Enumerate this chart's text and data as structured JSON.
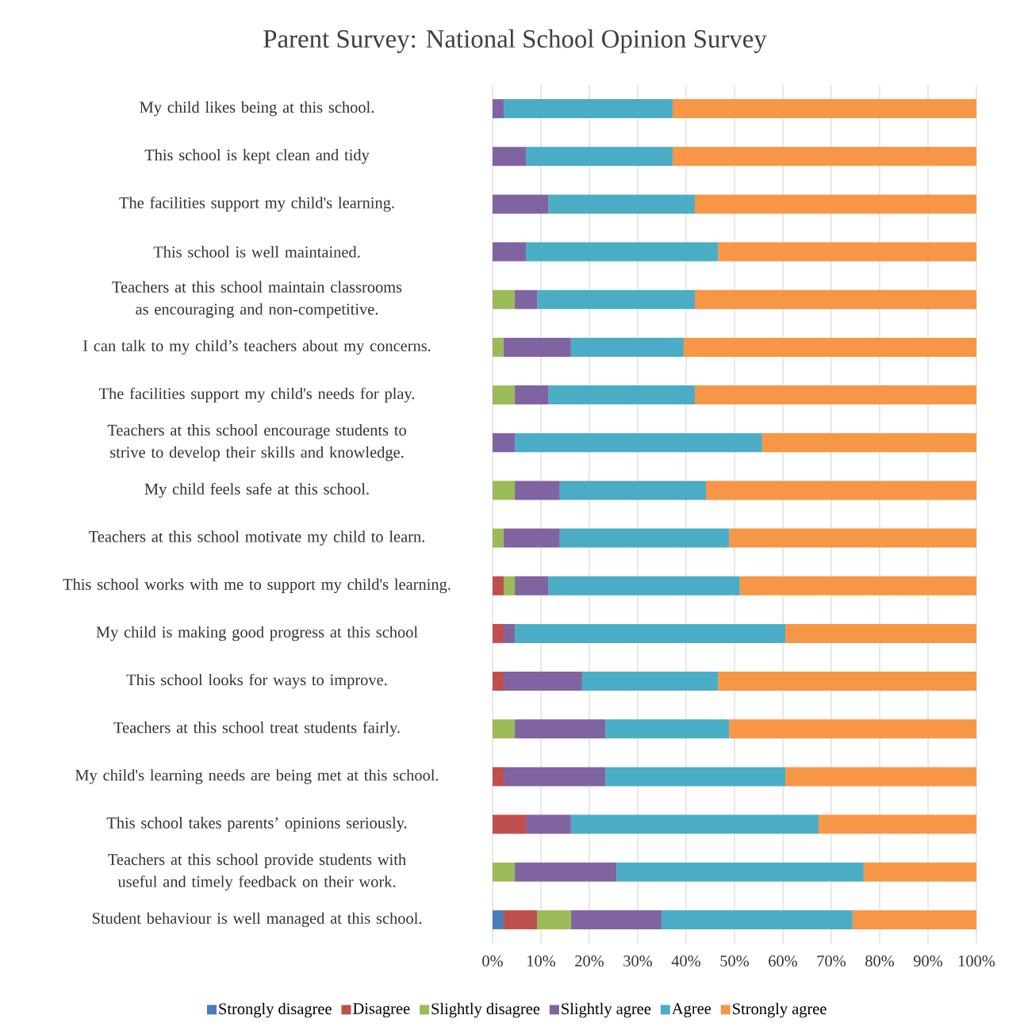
{
  "chart_data": {
    "type": "bar",
    "orientation": "horizontal",
    "stacked": true,
    "title": "Parent Survey: National School Opinion Survey",
    "categories": [
      "My child likes being at this school.",
      "This school is kept clean and tidy",
      "The facilities support my child's learning.",
      "This school is well maintained.",
      "Teachers at this school maintain classrooms as encouraging and non-competitive.",
      "I can talk to my child’s teachers about my concerns.",
      "The facilities support my child's needs for play.",
      "Teachers at this school encourage students to strive to develop their skills and knowledge.",
      "My child feels safe at this school.",
      "Teachers at this school motivate my child to learn.",
      "This school works with me to support my child's learning.",
      "My child is making good progress at this school",
      "This school looks for ways to improve.",
      "Teachers at this school treat students fairly.",
      "My child's learning needs are being met at this school.",
      "This school takes parents’ opinions seriously.",
      "Teachers at this school provide students with useful and timely feedback on their work.",
      "Student behaviour is well managed at this school."
    ],
    "series": [
      {
        "name": "Strongly disagree",
        "color": "#4a7ebb",
        "values": [
          0,
          0,
          0,
          0,
          0,
          0,
          0,
          0,
          0,
          0,
          0,
          0,
          0,
          0,
          0,
          0,
          0,
          2.3
        ]
      },
      {
        "name": "Disagree",
        "color": "#c0504d",
        "values": [
          0,
          0,
          0,
          0,
          0,
          0,
          0,
          0,
          0,
          0,
          2.3,
          2.3,
          2.3,
          0,
          2.3,
          6.9,
          0,
          6.9
        ]
      },
      {
        "name": "Slightly disagree",
        "color": "#9bbb59",
        "values": [
          0,
          0,
          0,
          0,
          4.6,
          2.3,
          4.6,
          0,
          4.6,
          2.3,
          2.3,
          0,
          0,
          4.6,
          0,
          0,
          4.6,
          7
        ]
      },
      {
        "name": "Slightly agree",
        "color": "#8064a2",
        "values": [
          2.3,
          6.9,
          11.5,
          6.9,
          4.6,
          13.9,
          6.9,
          4.6,
          9.3,
          11.6,
          6.9,
          2.3,
          16.2,
          18.7,
          21,
          9.3,
          21,
          18.7
        ]
      },
      {
        "name": "Agree",
        "color": "#4bacc6",
        "values": [
          34.9,
          30.3,
          30.3,
          39.7,
          32.6,
          23.3,
          30.3,
          51.1,
          30.2,
          35,
          39.6,
          55.9,
          28.1,
          25.6,
          37.2,
          51.2,
          51.1,
          39.5
        ]
      },
      {
        "name": "Strongly agree",
        "color": "#f79646",
        "values": [
          62.8,
          62.8,
          58.2,
          53.4,
          58.2,
          60.5,
          58.2,
          44.3,
          55.9,
          51.1,
          48.9,
          39.5,
          53.4,
          51.1,
          39.5,
          32.6,
          23.3,
          25.6
        ]
      }
    ],
    "xlim": [
      0,
      100
    ],
    "xticks": [
      {
        "value": 0,
        "label": "0%"
      },
      {
        "value": 10,
        "label": "10%"
      },
      {
        "value": 20,
        "label": "20%"
      },
      {
        "value": 30,
        "label": "30%"
      },
      {
        "value": 40,
        "label": "40%"
      },
      {
        "value": 50,
        "label": "50%"
      },
      {
        "value": 60,
        "label": "60%"
      },
      {
        "value": 70,
        "label": "70%"
      },
      {
        "value": 80,
        "label": "80%"
      },
      {
        "value": 90,
        "label": "90%"
      },
      {
        "value": 100,
        "label": "100%"
      }
    ],
    "grid": "x",
    "legend": "bottom"
  }
}
